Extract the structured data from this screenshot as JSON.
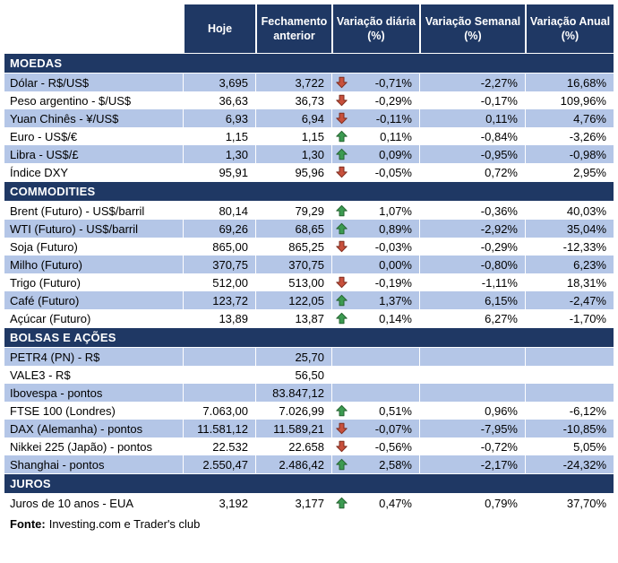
{
  "colors": {
    "header_bg": "#1F3864",
    "band_bg": "#B4C6E7",
    "up_arrow": "#3C9B51",
    "down_arrow": "#C8503C"
  },
  "chart_data": {
    "type": "table",
    "column_headers": [
      "Hoje",
      "Fechamento anterior",
      "Variação diária (%)",
      "Variação Semanal (%)",
      "Variação Anual (%)"
    ],
    "sections": [
      {
        "title": "MOEDAS",
        "rows": [
          {
            "label": "Dólar - R$/US$",
            "hoje": "3,695",
            "fechamento_anterior": "3,722",
            "arrow": "down",
            "variacao_diaria": "-0,71%",
            "variacao_semanal": "-2,27%",
            "variacao_anual": "16,68%",
            "shaded": true
          },
          {
            "label": "Peso argentino - $/US$",
            "hoje": "36,63",
            "fechamento_anterior": "36,73",
            "arrow": "down",
            "variacao_diaria": "-0,29%",
            "variacao_semanal": "-0,17%",
            "variacao_anual": "109,96%",
            "shaded": false
          },
          {
            "label": "Yuan Chinês - ¥/US$",
            "hoje": "6,93",
            "fechamento_anterior": "6,94",
            "arrow": "down",
            "variacao_diaria": "-0,11%",
            "variacao_semanal": "0,11%",
            "variacao_anual": "4,76%",
            "shaded": true
          },
          {
            "label": "Euro - US$/€",
            "hoje": "1,15",
            "fechamento_anterior": "1,15",
            "arrow": "up",
            "variacao_diaria": "0,11%",
            "variacao_semanal": "-0,84%",
            "variacao_anual": "-3,26%",
            "shaded": false
          },
          {
            "label": "Libra - US$/£",
            "hoje": "1,30",
            "fechamento_anterior": "1,30",
            "arrow": "up",
            "variacao_diaria": "0,09%",
            "variacao_semanal": "-0,95%",
            "variacao_anual": "-0,98%",
            "shaded": true
          },
          {
            "label": "Índice DXY",
            "hoje": "95,91",
            "fechamento_anterior": "95,96",
            "arrow": "down",
            "variacao_diaria": "-0,05%",
            "variacao_semanal": "0,72%",
            "variacao_anual": "2,95%",
            "shaded": false
          }
        ]
      },
      {
        "title": "COMMODITIES",
        "rows": [
          {
            "label": "Brent (Futuro) - US$/barril",
            "hoje": "80,14",
            "fechamento_anterior": "79,29",
            "arrow": "up",
            "variacao_diaria": "1,07%",
            "variacao_semanal": "-0,36%",
            "variacao_anual": "40,03%",
            "shaded": false
          },
          {
            "label": "WTI (Futuro) - US$/barril",
            "hoje": "69,26",
            "fechamento_anterior": "68,65",
            "arrow": "up",
            "variacao_diaria": "0,89%",
            "variacao_semanal": "-2,92%",
            "variacao_anual": "35,04%",
            "shaded": true
          },
          {
            "label": "Soja (Futuro)",
            "hoje": "865,00",
            "fechamento_anterior": "865,25",
            "arrow": "down",
            "variacao_diaria": "-0,03%",
            "variacao_semanal": "-0,29%",
            "variacao_anual": "-12,33%",
            "shaded": false
          },
          {
            "label": "Milho (Futuro)",
            "hoje": "370,75",
            "fechamento_anterior": "370,75",
            "arrow": "none",
            "variacao_diaria": "0,00%",
            "variacao_semanal": "-0,80%",
            "variacao_anual": "6,23%",
            "shaded": true
          },
          {
            "label": "Trigo (Futuro)",
            "hoje": "512,00",
            "fechamento_anterior": "513,00",
            "arrow": "down",
            "variacao_diaria": "-0,19%",
            "variacao_semanal": "-1,11%",
            "variacao_anual": "18,31%",
            "shaded": false
          },
          {
            "label": "Café (Futuro)",
            "hoje": "123,72",
            "fechamento_anterior": "122,05",
            "arrow": "up",
            "variacao_diaria": "1,37%",
            "variacao_semanal": "6,15%",
            "variacao_anual": "-2,47%",
            "shaded": true
          },
          {
            "label": "Açúcar (Futuro)",
            "hoje": "13,89",
            "fechamento_anterior": "13,87",
            "arrow": "up",
            "variacao_diaria": "0,14%",
            "variacao_semanal": "6,27%",
            "variacao_anual": "-1,70%",
            "shaded": false
          }
        ]
      },
      {
        "title": "BOLSAS E AÇÕES",
        "rows": [
          {
            "label": "PETR4 (PN) - R$",
            "hoje": "",
            "fechamento_anterior": "25,70",
            "arrow": "none",
            "variacao_diaria": "",
            "variacao_semanal": "",
            "variacao_anual": "",
            "shaded": true
          },
          {
            "label": "VALE3 - R$",
            "hoje": "",
            "fechamento_anterior": "56,50",
            "arrow": "none",
            "variacao_diaria": "",
            "variacao_semanal": "",
            "variacao_anual": "",
            "shaded": false
          },
          {
            "label": "Ibovespa - pontos",
            "hoje": "",
            "fechamento_anterior": "83.847,12",
            "arrow": "none",
            "variacao_diaria": "",
            "variacao_semanal": "",
            "variacao_anual": "",
            "shaded": true
          },
          {
            "label": "FTSE 100 (Londres)",
            "hoje": "7.063,00",
            "fechamento_anterior": "7.026,99",
            "arrow": "up",
            "variacao_diaria": "0,51%",
            "variacao_semanal": "0,96%",
            "variacao_anual": "-6,12%",
            "shaded": false
          },
          {
            "label": "DAX (Alemanha) - pontos",
            "hoje": "11.581,12",
            "fechamento_anterior": "11.589,21",
            "arrow": "down",
            "variacao_diaria": "-0,07%",
            "variacao_semanal": "-7,95%",
            "variacao_anual": "-10,85%",
            "shaded": true
          },
          {
            "label": "Nikkei 225 (Japão) - pontos",
            "hoje": "22.532",
            "fechamento_anterior": "22.658",
            "arrow": "down",
            "variacao_diaria": "-0,56%",
            "variacao_semanal": "-0,72%",
            "variacao_anual": "5,05%",
            "shaded": false
          },
          {
            "label": "Shanghai - pontos",
            "hoje": "2.550,47",
            "fechamento_anterior": "2.486,42",
            "arrow": "up",
            "variacao_diaria": "2,58%",
            "variacao_semanal": "-2,17%",
            "variacao_anual": "-24,32%",
            "shaded": true
          }
        ]
      },
      {
        "title": "JUROS",
        "rows": [
          {
            "label": "Juros de 10 anos - EUA",
            "hoje": "3,192",
            "fechamento_anterior": "3,177",
            "arrow": "up",
            "variacao_diaria": "0,47%",
            "variacao_semanal": "0,79%",
            "variacao_anual": "37,70%",
            "shaded": false
          }
        ]
      }
    ],
    "footer": {
      "label": "Fonte:",
      "text": "Investing.com e Trader's club"
    }
  }
}
